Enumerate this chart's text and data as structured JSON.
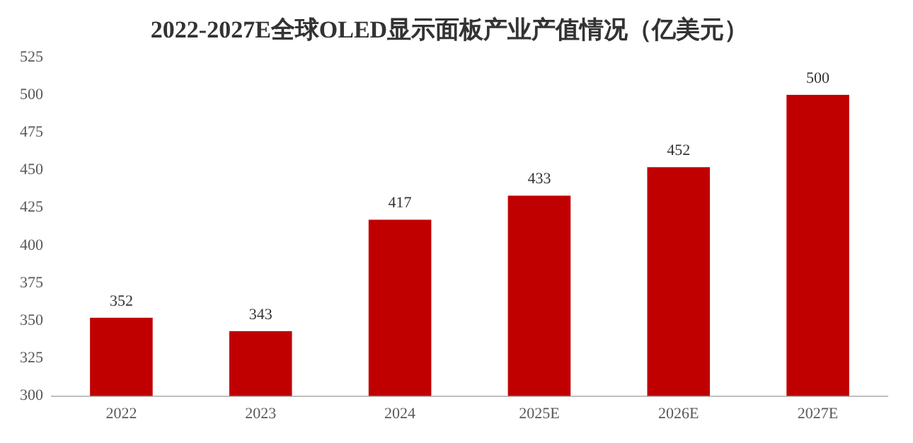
{
  "chart_data": {
    "type": "bar",
    "title": "2022-2027E全球OLED显示面板产业产值情况（亿美元）",
    "categories": [
      "2022",
      "2023",
      "2024",
      "2025E",
      "2026E",
      "2027E"
    ],
    "values": [
      352,
      343,
      417,
      433,
      452,
      500
    ],
    "color": "#c00000",
    "ylim": [
      300,
      525
    ],
    "yticks": [
      300,
      325,
      350,
      375,
      400,
      425,
      450,
      475,
      500,
      525
    ],
    "grid": false,
    "data_labels": true
  }
}
